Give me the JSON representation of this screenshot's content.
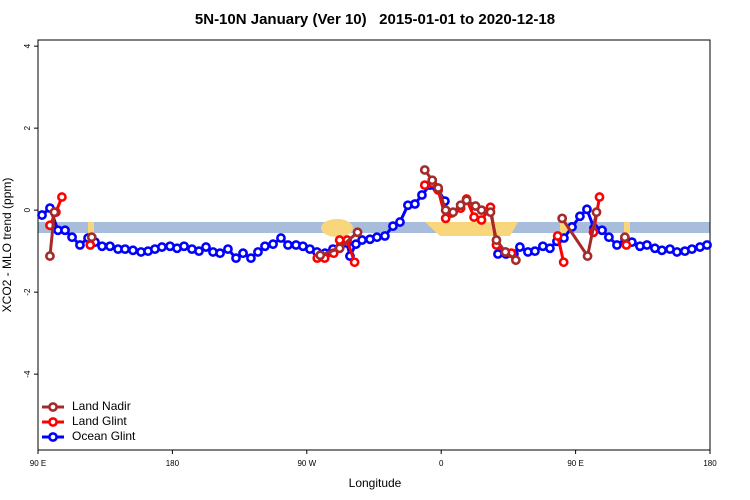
{
  "chart_data": {
    "type": "line",
    "title": "5N-10N January (Ver 10)   2015-01-01 to 2020-12-18",
    "x_label": "Longitude",
    "y_label": "XCO2 - MLO trend (ppm)",
    "xlim": [
      90,
      540
    ],
    "xticks": [
      {
        "value": 90,
        "label": "90 E"
      },
      180,
      {
        "value": 270,
        "label": "90 W"
      },
      {
        "value": 360,
        "label": "0"
      },
      {
        "value": 450,
        "label": "90 E"
      },
      {
        "value": 540,
        "label": "180"
      }
    ],
    "ylim": [
      -5.85,
      4.15
    ],
    "yticks": [
      4,
      2,
      0,
      -2,
      -4
    ],
    "legend": "bottom-left",
    "series": [
      {
        "name": "Land Nadir",
        "color": "#a52a2a",
        "x": [
          98,
          101,
          null,
          126,
          null,
          279,
          292,
          304,
          null,
          349,
          354,
          358,
          363,
          368,
          373,
          377,
          383,
          387,
          393,
          397,
          403,
          410,
          null,
          441,
          458,
          464,
          null,
          483
        ],
        "values": [
          -1.12,
          -0.05,
          null,
          -0.66,
          null,
          -1.1,
          -0.93,
          -0.54,
          null,
          0.98,
          0.73,
          0.54,
          0.0,
          -0.05,
          0.12,
          0.24,
          0.1,
          0.0,
          -0.05,
          -0.73,
          -1.02,
          -1.22,
          null,
          -0.2,
          -1.12,
          -0.05,
          null,
          -0.66
        ]
      },
      {
        "name": "Land Glint",
        "color": "#ff0000",
        "x": [
          98,
          102,
          106,
          null,
          125,
          null,
          277,
          282,
          288,
          292,
          297,
          302,
          null,
          349,
          354,
          358,
          363,
          367,
          373,
          377,
          382,
          387,
          393,
          397,
          403,
          407,
          null,
          438,
          442,
          null,
          462,
          466,
          null,
          484
        ],
        "values": [
          -0.37,
          -0.05,
          0.32,
          null,
          -0.85,
          null,
          -1.17,
          -1.17,
          -1.05,
          -0.73,
          -0.73,
          -1.27,
          null,
          0.61,
          0.66,
          0.49,
          -0.2,
          -0.07,
          0.05,
          0.27,
          -0.17,
          -0.24,
          0.07,
          -0.85,
          -1.02,
          -1.05,
          null,
          -0.63,
          -1.27,
          null,
          -0.54,
          0.32,
          null,
          -0.85
        ]
      },
      {
        "name": "Ocean Glint",
        "color": "#0000ff",
        "x": [
          92.7,
          98,
          103.4,
          108.1,
          112.8,
          118.1,
          123.5,
          128.2,
          132.9,
          138.2,
          143.6,
          148.3,
          153.6,
          159,
          163.7,
          168.3,
          173,
          178.4,
          183.1,
          187.8,
          193.1,
          197.8,
          202.5,
          207.2,
          211.9,
          217.2,
          222.6,
          227.3,
          232.6,
          237.3,
          242,
          247.4,
          252.7,
          257.4,
          262.8,
          267.4,
          272.1,
          276.8,
          282.2,
          287.5,
          292.2,
          296.9,
          298.9,
          302.9,
          307,
          312.3,
          317,
          322.3,
          327.7,
          332.4,
          337.7,
          342.4,
          347.1,
          352.5,
          357.2,
          362.5,
          null,
          398,
          403.4,
          408.7,
          412.7,
          418.1,
          422.8,
          428.1,
          432.8,
          437.5,
          442.2,
          447.6,
          452.9,
          457.6,
          462.3,
          467.7,
          472.3,
          477.7,
          483.1,
          487.7,
          493.1,
          497.8,
          503.1,
          507.8,
          513.2,
          517.9,
          523.2,
          527.9,
          533.3,
          538
        ],
        "values": [
          -0.12,
          0.05,
          -0.49,
          -0.49,
          -0.66,
          -0.85,
          -0.68,
          -0.78,
          -0.88,
          -0.88,
          -0.95,
          -0.95,
          -0.98,
          -1.02,
          -1.0,
          -0.95,
          -0.9,
          -0.88,
          -0.93,
          -0.88,
          -0.95,
          -1.0,
          -0.9,
          -1.02,
          -1.05,
          -0.95,
          -1.17,
          -1.05,
          -1.17,
          -1.02,
          -0.88,
          -0.83,
          -0.68,
          -0.85,
          -0.85,
          -0.88,
          -0.95,
          -1.02,
          -1.05,
          -0.95,
          -0.9,
          -0.8,
          -1.12,
          -0.83,
          -0.73,
          -0.71,
          -0.66,
          -0.63,
          -0.39,
          -0.29,
          0.12,
          0.15,
          0.37,
          0.61,
          0.54,
          0.22,
          null,
          -1.07,
          -1.07,
          -1.07,
          -0.9,
          -1.02,
          -1.0,
          -0.88,
          -0.93,
          -0.76,
          -0.68,
          -0.41,
          -0.15,
          0.02,
          -0.44,
          -0.49,
          -0.66,
          -0.85,
          -0.71,
          -0.78,
          -0.88,
          -0.85,
          -0.93,
          -0.98,
          -0.95,
          -1.02,
          -1.0,
          -0.95,
          -0.9,
          -0.85
        ]
      }
    ]
  }
}
